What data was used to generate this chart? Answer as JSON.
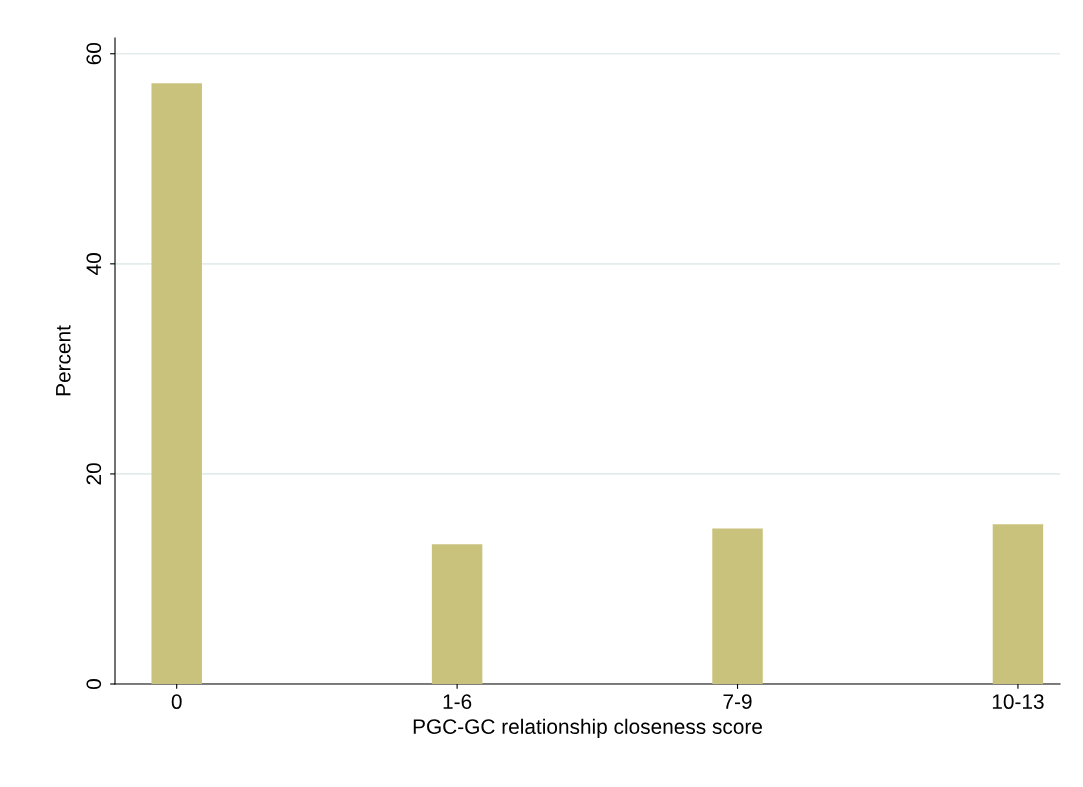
{
  "chart_data": {
    "type": "bar",
    "xlabel": "PGC-GC relationship closeness score",
    "ylabel": "Percent",
    "categories": [
      "0",
      "1-6",
      "7-9",
      "10-13"
    ],
    "values": [
      57.2,
      13.3,
      14.8,
      15.2
    ],
    "color": "#c9c27c",
    "ylim": [
      0,
      61.5
    ],
    "yticks": [
      0,
      20,
      40,
      60
    ],
    "grid": "y"
  }
}
